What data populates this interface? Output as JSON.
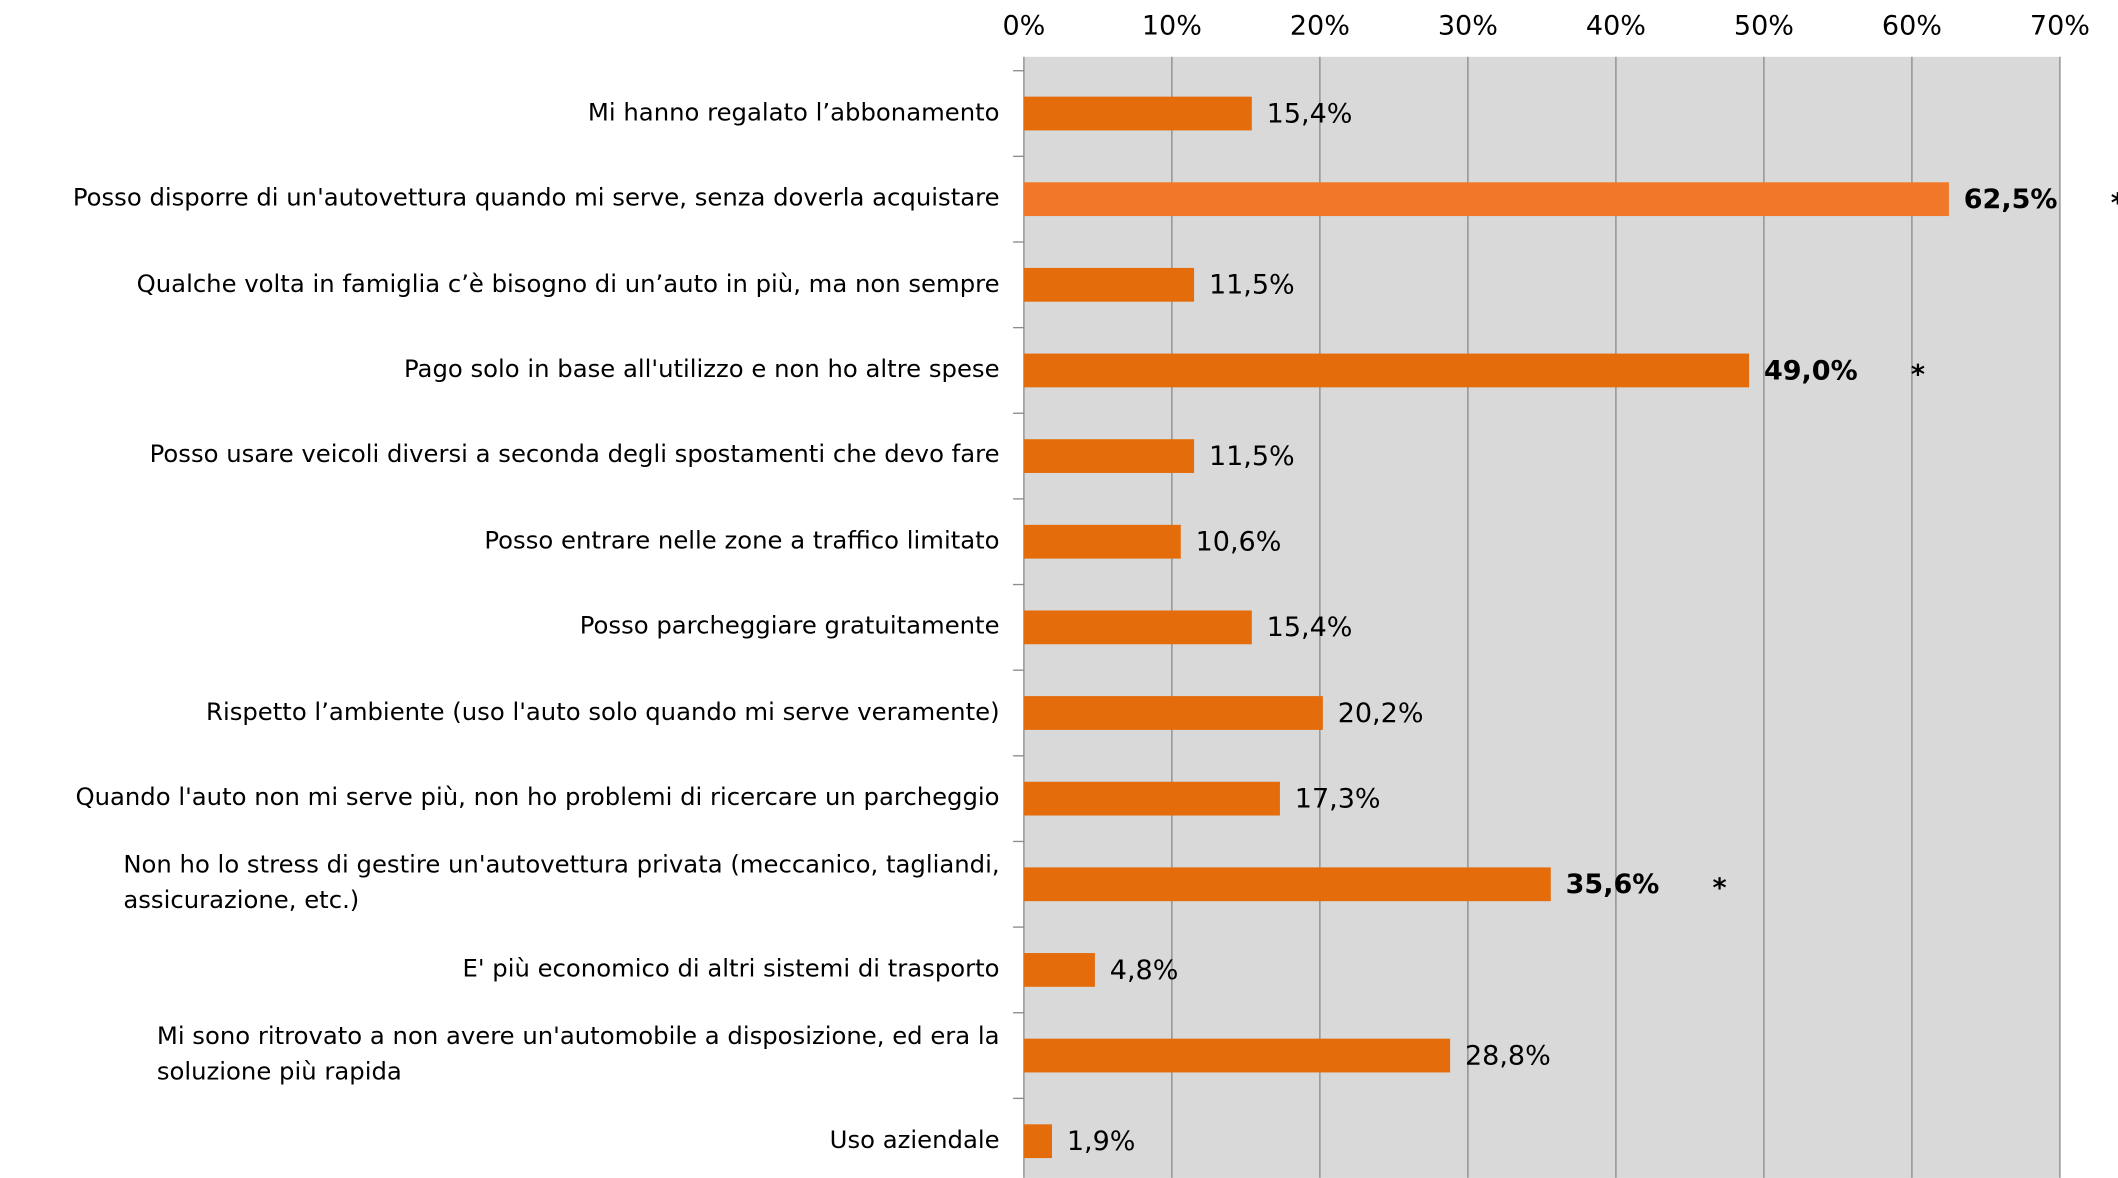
{
  "chart_data": {
    "type": "barh",
    "categories": [
      "Mi hanno regalato l’abbonamento",
      "Posso disporre di un'autovettura quando mi serve, senza doverla acquistare",
      "Qualche volta in famiglia c’è bisogno di un’auto in più, ma non sempre",
      "Pago solo in base all'utilizzo e non ho altre spese",
      "Posso usare veicoli diversi  a seconda degli spostamenti che devo fare",
      "Posso entrare nelle zone a traffico limitato",
      "Posso parcheggiare gratuitamente",
      "Rispetto l’ambiente (uso l'auto solo quando mi serve veramente)",
      "Quando l'auto non mi serve più, non ho problemi di ricercare un parcheggio",
      "Non ho lo stress di gestire un'autovettura privata (meccanico, tagliandi,\nassicurazione, etc.)",
      "E' più economico di altri sistemi di trasporto",
      "Mi sono ritrovato a non avere un'automobile a disposizione, ed era la\nsoluzione più rapida",
      "Uso aziendale"
    ],
    "values": [
      15.4,
      62.5,
      11.5,
      49.0,
      11.5,
      10.6,
      15.4,
      20.2,
      17.3,
      35.6,
      4.8,
      28.8,
      1.9
    ],
    "value_labels": [
      "15,4%",
      "62,5%",
      "11,5%",
      "49,0%",
      "11,5%",
      "10,6%",
      "15,4%",
      "20,2%",
      "17,3%",
      "35,6%",
      "4,8%",
      "28,8%",
      "1,9%"
    ],
    "highlighted": [
      1,
      3,
      9
    ],
    "highlight_symbol": "*",
    "color": "#e46c0a",
    "highlight_color": "#f07828",
    "xlim": [
      0,
      70
    ],
    "xticks": [
      {
        "value": 0,
        "label": "0%"
      },
      {
        "value": 10,
        "label": "10%"
      },
      {
        "value": 20,
        "label": "20%"
      },
      {
        "value": 30,
        "label": "30%"
      },
      {
        "value": 40,
        "label": "40%"
      },
      {
        "value": 50,
        "label": "50%"
      },
      {
        "value": 60,
        "label": "60%"
      },
      {
        "value": 70,
        "label": "70%"
      }
    ],
    "grid": true
  }
}
